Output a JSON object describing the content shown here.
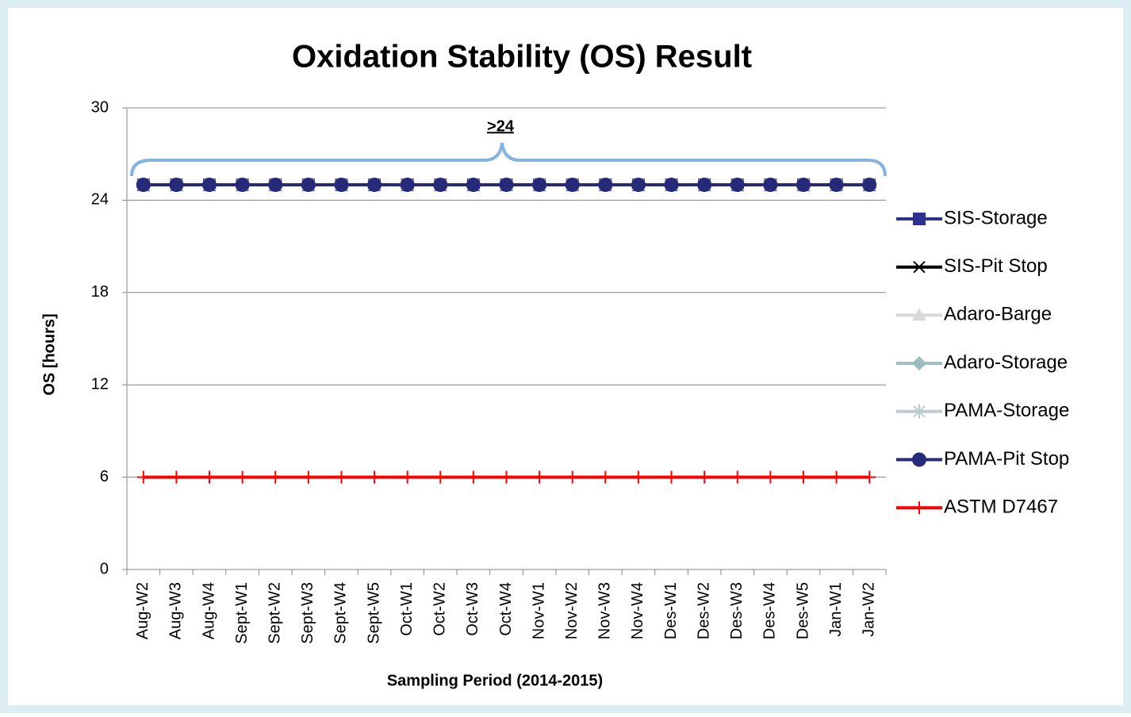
{
  "chart_data": {
    "type": "line",
    "title": "Oxidation Stability (OS) Result",
    "x_label": "Sampling Period (2014-2015)",
    "y_label": "OS [hours]",
    "annotation": ">24",
    "categories": [
      "Aug-W2",
      "Aug-W3",
      "Aug-W4",
      "Sept-W1",
      "Sept-W2",
      "Sept-W3",
      "Sept-W4",
      "Sept-W5",
      "Oct-W1",
      "Oct-W2",
      "Oct-W3",
      "Oct-W4",
      "Nov-W1",
      "Nov-W2",
      "Nov-W3",
      "Nov-W4",
      "Des-W1",
      "Des-W2",
      "Des-W3",
      "Des-W4",
      "Des-W5",
      "Jan-W1",
      "Jan-W2"
    ],
    "ylim": [
      0,
      30
    ],
    "yticks": [
      0,
      6,
      12,
      18,
      24,
      30
    ],
    "grid": true,
    "legend": "right",
    "series": [
      {
        "name": "SIS-Storage",
        "color": "#2e3192",
        "marker": "square",
        "values": [
          25,
          25,
          25,
          25,
          25,
          25,
          25,
          25,
          25,
          25,
          25,
          25,
          25,
          25,
          25,
          25,
          25,
          25,
          25,
          25,
          25,
          25,
          25
        ]
      },
      {
        "name": "SIS-Pit Stop",
        "color": "#000000",
        "marker": "x",
        "values": [
          25,
          25,
          25,
          25,
          25,
          25,
          25,
          25,
          25,
          25,
          25,
          25,
          25,
          25,
          25,
          25,
          25,
          25,
          25,
          25,
          25,
          25,
          25
        ]
      },
      {
        "name": "Adaro-Barge",
        "color": "#d9d9d9",
        "marker": "triangle",
        "values": [
          25,
          25,
          25,
          25,
          25,
          25,
          25,
          25,
          25,
          25,
          25,
          25,
          25,
          25,
          25,
          25,
          25,
          25,
          25,
          25,
          25,
          25,
          25
        ]
      },
      {
        "name": "Adaro-Storage",
        "color": "#9dbcc0",
        "marker": "diamond",
        "values": [
          25,
          25,
          25,
          25,
          25,
          25,
          25,
          25,
          25,
          25,
          25,
          25,
          25,
          25,
          25,
          25,
          25,
          25,
          25,
          25,
          25,
          25,
          25
        ]
      },
      {
        "name": "PAMA-Storage",
        "color": "#bccdd0",
        "marker": "star",
        "values": [
          25,
          25,
          25,
          25,
          25,
          25,
          25,
          25,
          25,
          25,
          25,
          25,
          25,
          25,
          25,
          25,
          25,
          25,
          25,
          25,
          25,
          25,
          25
        ]
      },
      {
        "name": "PAMA-Pit Stop",
        "color": "#262a78",
        "marker": "circle",
        "values": [
          25,
          25,
          25,
          25,
          25,
          25,
          25,
          25,
          25,
          25,
          25,
          25,
          25,
          25,
          25,
          25,
          25,
          25,
          25,
          25,
          25,
          25,
          25
        ]
      },
      {
        "name": "ASTM D7467",
        "color": "#ff0000",
        "marker": "plus",
        "values": [
          6,
          6,
          6,
          6,
          6,
          6,
          6,
          6,
          6,
          6,
          6,
          6,
          6,
          6,
          6,
          6,
          6,
          6,
          6,
          6,
          6,
          6,
          6
        ]
      }
    ]
  }
}
